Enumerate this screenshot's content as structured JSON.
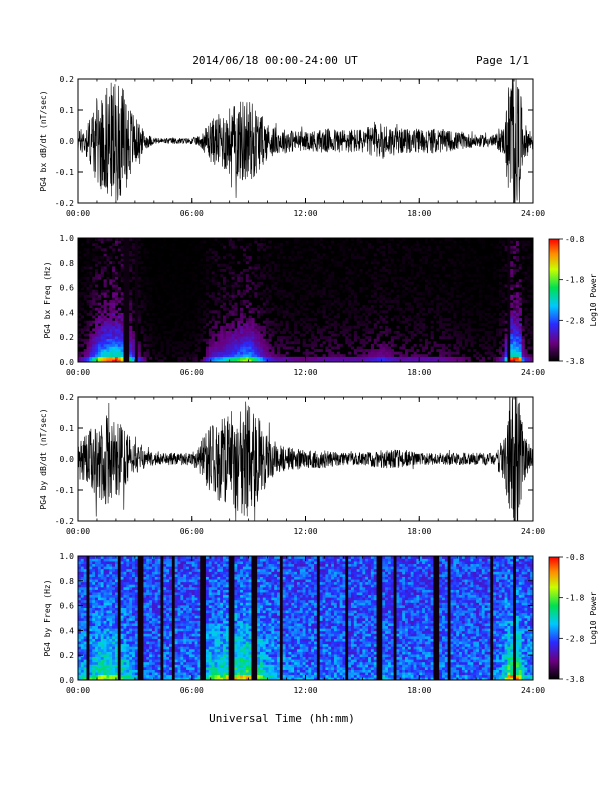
{
  "header": {
    "title": "2014/06/18  00:00-24:00 UT",
    "page": "Page 1/1"
  },
  "chart_data": [
    {
      "type": "line",
      "ylabel": "PG4 bx dB/dt (nT/sec)",
      "xlim": [
        0,
        24
      ],
      "ylim": [
        -0.2,
        0.2
      ],
      "x_ticks": [
        "00:00",
        "06:00",
        "12:00",
        "18:00",
        "24:00"
      ],
      "y_ticks": [
        "-0.2",
        "-0.1",
        "0.0",
        "0.1",
        "0.2"
      ],
      "envelope": {
        "hours": [
          0,
          0.5,
          1,
          1.5,
          2,
          2.5,
          3,
          3.5,
          4,
          5,
          6,
          6.5,
          7,
          7.5,
          8,
          8.5,
          9,
          9.5,
          10,
          10.5,
          11,
          12,
          13,
          14,
          15,
          16,
          17,
          18,
          19,
          20,
          21,
          22,
          22.5,
          22.8,
          23,
          23.2,
          23.5,
          24
        ],
        "amplitude": [
          0.03,
          0.06,
          0.14,
          0.18,
          0.2,
          0.16,
          0.08,
          0.03,
          0.01,
          0.01,
          0.01,
          0.02,
          0.07,
          0.09,
          0.11,
          0.13,
          0.15,
          0.1,
          0.06,
          0.04,
          0.04,
          0.03,
          0.04,
          0.04,
          0.04,
          0.06,
          0.04,
          0.04,
          0.04,
          0.03,
          0.02,
          0.02,
          0.05,
          0.25,
          0.25,
          0.25,
          0.06,
          0.03
        ]
      }
    },
    {
      "type": "heatmap",
      "ylabel": "PG4 bx Freq (Hz)",
      "xlim": [
        0,
        24
      ],
      "ylim": [
        0.0,
        1.0
      ],
      "x_ticks": [
        "00:00",
        "06:00",
        "12:00",
        "18:00",
        "24:00"
      ],
      "y_ticks": [
        "0.0",
        "0.2",
        "0.4",
        "0.6",
        "0.8",
        "1.0"
      ],
      "colorbar": {
        "label": "Log10 Power",
        "range": [
          -3.8,
          -0.8
        ],
        "ticks": [
          "-0.8",
          "-1.8",
          "-2.8",
          "-3.8"
        ]
      }
    },
    {
      "type": "line",
      "ylabel": "PG4 by dB/dt (nT/sec)",
      "xlim": [
        0,
        24
      ],
      "ylim": [
        -0.2,
        0.2
      ],
      "x_ticks": [
        "00:00",
        "06:00",
        "12:00",
        "18:00",
        "24:00"
      ],
      "y_ticks": [
        "-0.2",
        "-0.1",
        "0.0",
        "0.1",
        "0.2"
      ],
      "envelope": {
        "hours": [
          0,
          0.5,
          1,
          1.5,
          2,
          2.5,
          3,
          3.5,
          4,
          5,
          6,
          6.5,
          7,
          7.5,
          8,
          8.5,
          9,
          9.5,
          10,
          10.5,
          11,
          12,
          13,
          14,
          15,
          16,
          17,
          18,
          19,
          20,
          21,
          22,
          22.5,
          22.8,
          23,
          23.2,
          23.5,
          24
        ],
        "amplitude": [
          0.06,
          0.09,
          0.12,
          0.15,
          0.13,
          0.1,
          0.05,
          0.03,
          0.02,
          0.02,
          0.02,
          0.06,
          0.11,
          0.14,
          0.15,
          0.18,
          0.19,
          0.14,
          0.08,
          0.05,
          0.04,
          0.03,
          0.03,
          0.02,
          0.02,
          0.03,
          0.03,
          0.02,
          0.02,
          0.02,
          0.02,
          0.02,
          0.08,
          0.25,
          0.25,
          0.25,
          0.08,
          0.03
        ]
      }
    },
    {
      "type": "heatmap",
      "ylabel": "PG4 by Freq (Hz)",
      "xlabel": "Universal Time (hh:mm)",
      "xlim": [
        0,
        24
      ],
      "ylim": [
        0.0,
        1.0
      ],
      "x_ticks": [
        "00:00",
        "06:00",
        "12:00",
        "18:00",
        "24:00"
      ],
      "y_ticks": [
        "0.0",
        "0.2",
        "0.4",
        "0.6",
        "0.8",
        "1.0"
      ],
      "colorbar": {
        "label": "Log10 Power",
        "range": [
          -3.8,
          -0.8
        ],
        "ticks": [
          "-0.8",
          "-1.8",
          "-2.8",
          "-3.8"
        ]
      }
    }
  ]
}
